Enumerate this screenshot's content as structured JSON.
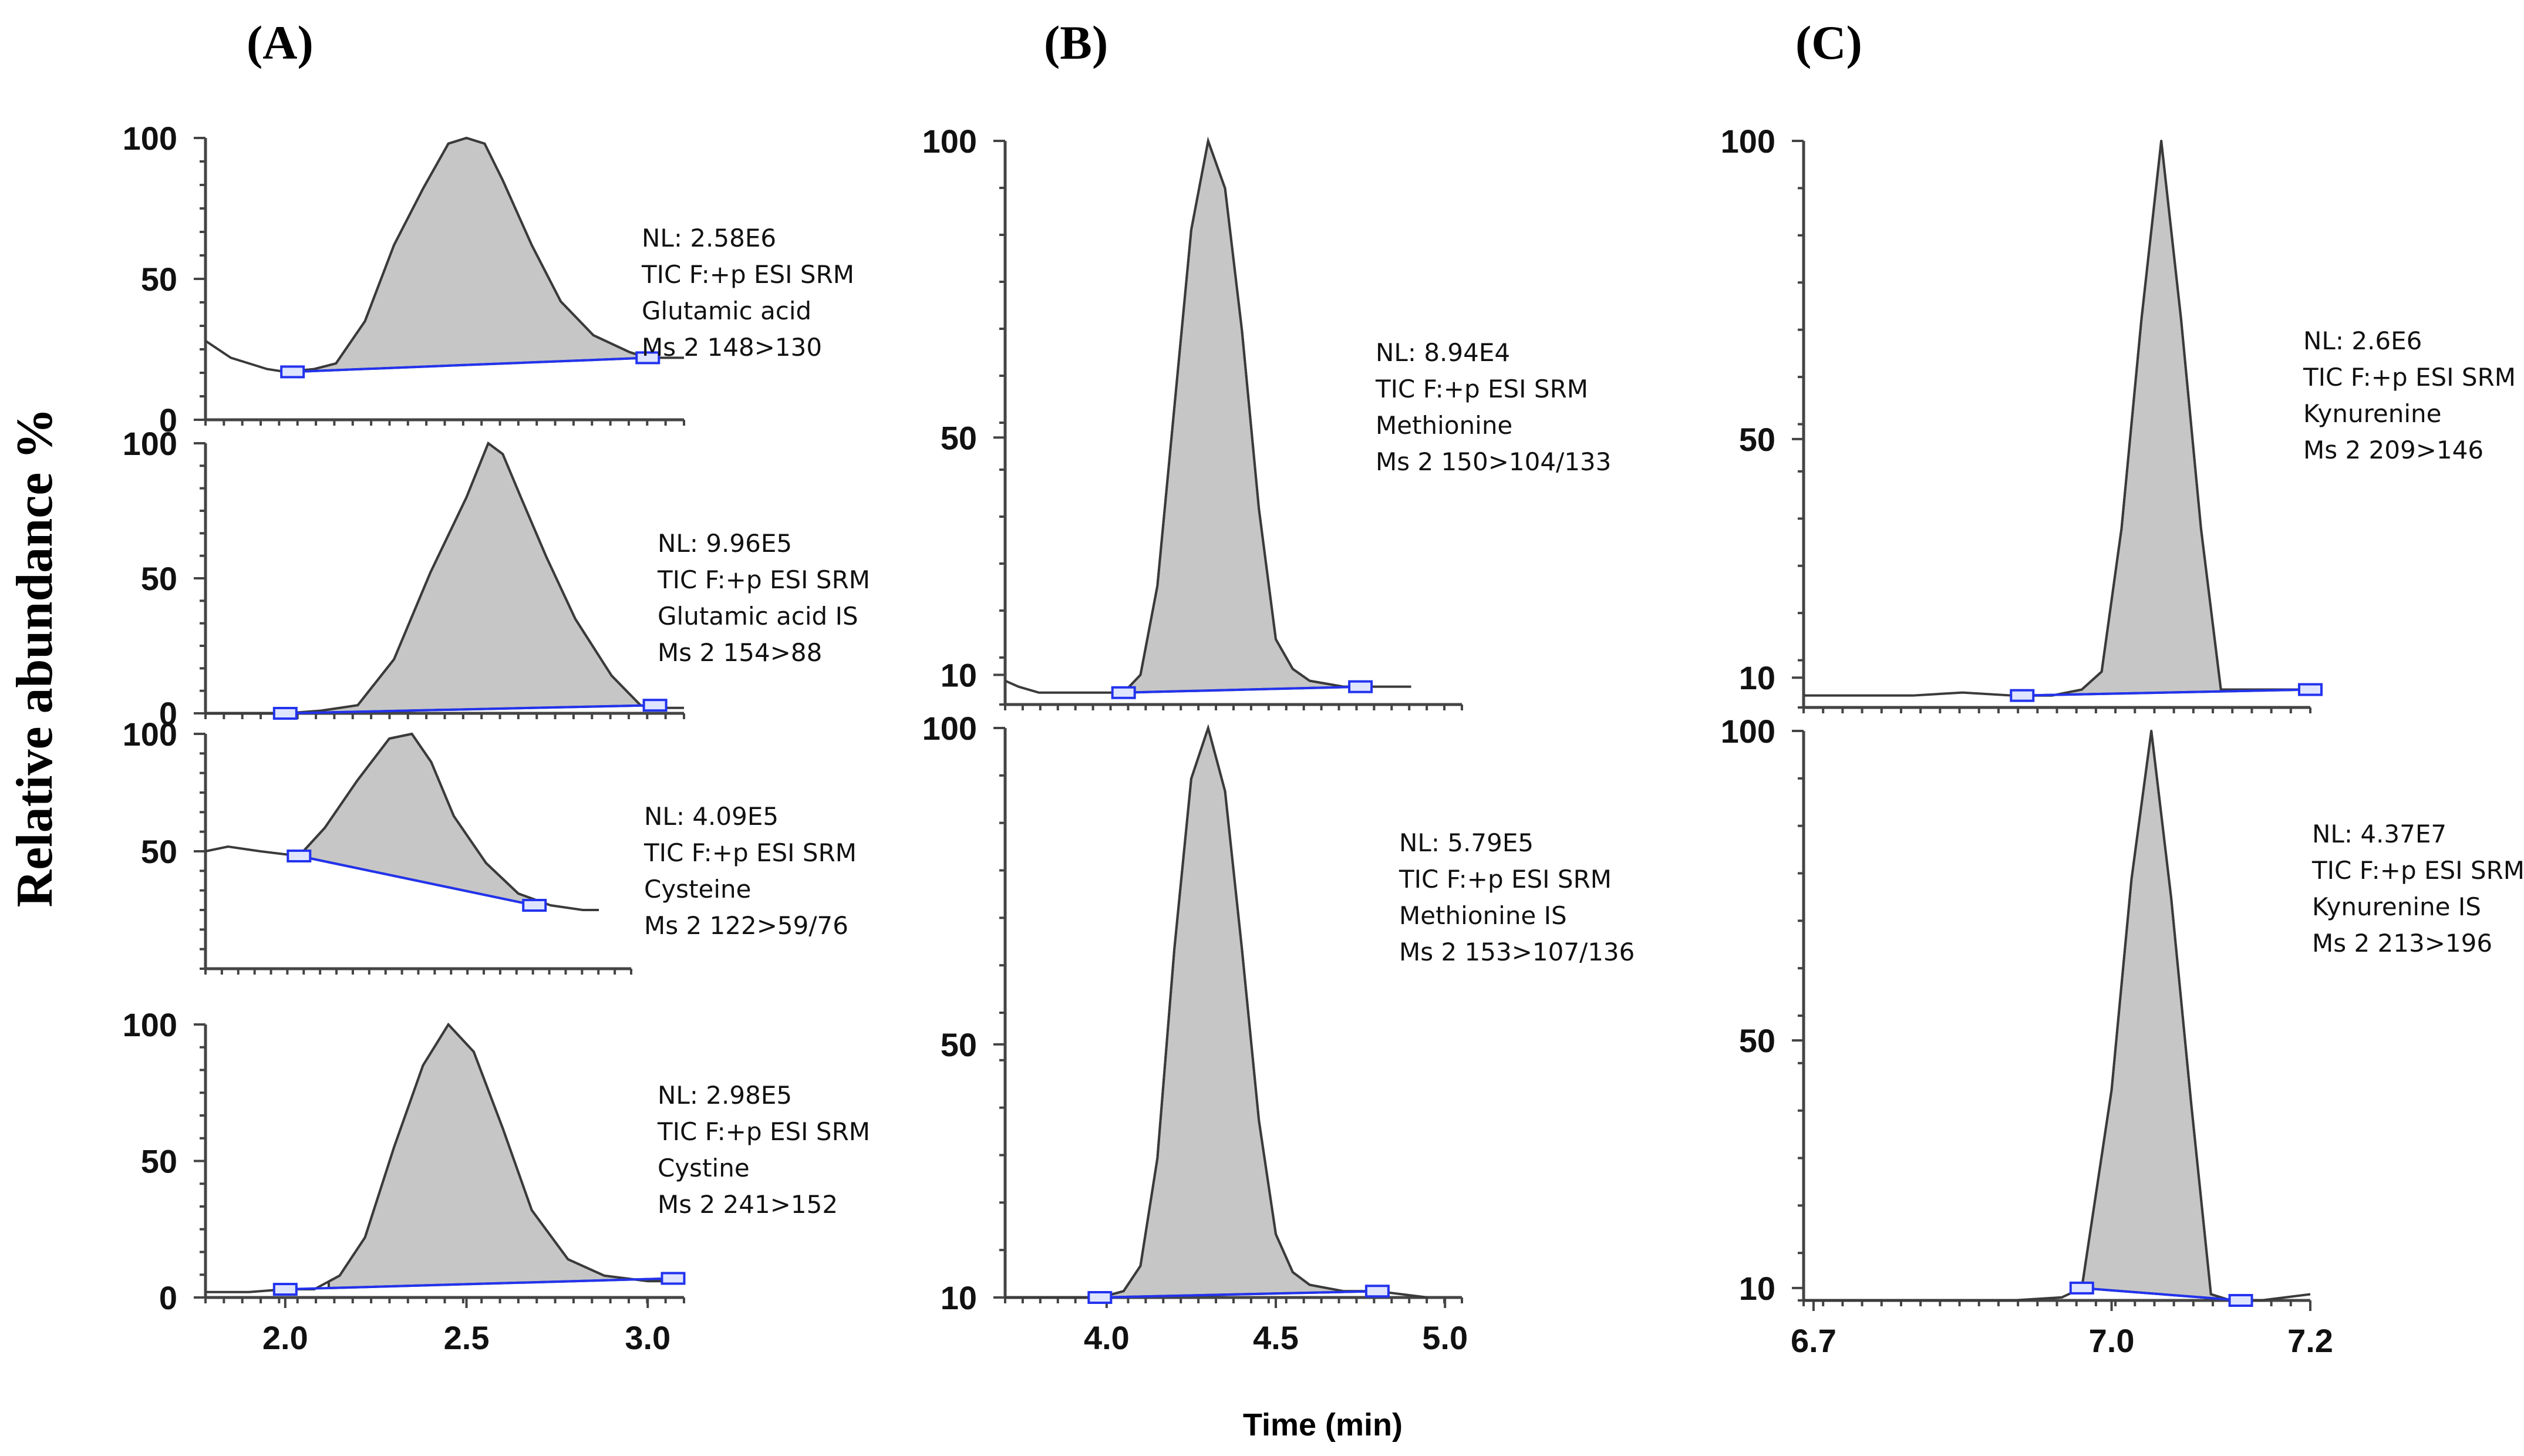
{
  "figure": {
    "panel_labels": [
      "(A)",
      "(B)",
      "(C)"
    ],
    "ylabel": "Relative abundance %",
    "xlabel": "Time (min)"
  },
  "chart_data": [
    {
      "type": "line",
      "column": "A",
      "title": "Glutamic acid",
      "xlim": [
        1.78,
        3.1
      ],
      "ylim": [
        0,
        100
      ],
      "yticks": [
        0,
        50,
        100
      ],
      "xticks": [],
      "x": [
        1.78,
        1.85,
        1.9,
        1.95,
        2.0,
        2.08,
        2.14,
        2.22,
        2.3,
        2.38,
        2.45,
        2.5,
        2.55,
        2.6,
        2.68,
        2.76,
        2.85,
        2.95,
        3.0,
        3.1
      ],
      "values": [
        28,
        22,
        20,
        18,
        17,
        18,
        20,
        35,
        62,
        82,
        98,
        100,
        98,
        85,
        62,
        42,
        30,
        24,
        22,
        22
      ],
      "peak_range": [
        2.02,
        3.0
      ],
      "baseline": [
        [
          2.02,
          17
        ],
        [
          3.0,
          22
        ]
      ],
      "annotation": {
        "nl": "NL:  2.58E6",
        "scan": "TIC F:+p ESI SRM",
        "compound": "Glutamic acid",
        "transition": "Ms 2 148>130"
      }
    },
    {
      "type": "line",
      "column": "A",
      "title": "Glutamic acid IS",
      "xlim": [
        1.78,
        3.1
      ],
      "ylim": [
        0,
        100
      ],
      "yticks": [
        0,
        50,
        100
      ],
      "xticks": [],
      "x": [
        1.78,
        2.0,
        2.1,
        2.2,
        2.3,
        2.4,
        2.5,
        2.56,
        2.6,
        2.65,
        2.72,
        2.8,
        2.9,
        2.98,
        3.02,
        3.1
      ],
      "values": [
        0,
        0,
        1,
        3,
        20,
        52,
        80,
        100,
        96,
        80,
        58,
        35,
        14,
        3,
        2,
        2
      ],
      "peak_range": [
        2.1,
        3.02
      ],
      "baseline": [
        [
          2.0,
          0
        ],
        [
          3.02,
          3
        ]
      ],
      "annotation": {
        "nl": "NL:  9.96E5",
        "scan": "TIC F:+p ESI SRM",
        "compound": "Glutamic acid IS",
        "transition": "Ms 2 154>88"
      }
    },
    {
      "type": "line",
      "column": "A",
      "title": "Cysteine",
      "xlim": [
        1.78,
        3.1
      ],
      "ylim": [
        0,
        100
      ],
      "yticks": [
        50,
        100
      ],
      "xticks": [],
      "x": [
        1.78,
        1.85,
        1.95,
        2.07,
        2.15,
        2.25,
        2.35,
        2.42,
        2.48,
        2.55,
        2.65,
        2.75,
        2.85,
        2.95,
        3.0
      ],
      "values": [
        50,
        52,
        50,
        48,
        60,
        80,
        98,
        100,
        88,
        65,
        45,
        32,
        27,
        25,
        25
      ],
      "peak_range": [
        2.07,
        2.8
      ],
      "baseline": [
        [
          2.07,
          48
        ],
        [
          2.8,
          27
        ]
      ],
      "annotation": {
        "nl": "NL:  4.09E5",
        "scan": "TIC F:+p ESI SRM",
        "compound": "Cysteine",
        "transition": "Ms 2 122>59/76"
      }
    },
    {
      "type": "line",
      "column": "A",
      "title": "Cystine",
      "xlim": [
        1.78,
        3.1
      ],
      "ylim": [
        0,
        100
      ],
      "yticks": [
        0,
        50,
        100
      ],
      "xticks": [
        "2.0",
        "2.5",
        "3.0"
      ],
      "x": [
        1.78,
        1.9,
        2.0,
        2.08,
        2.15,
        2.22,
        2.3,
        2.38,
        2.45,
        2.52,
        2.6,
        2.68,
        2.78,
        2.88,
        3.0,
        3.1
      ],
      "values": [
        2,
        2,
        3,
        3,
        8,
        22,
        55,
        85,
        100,
        90,
        62,
        32,
        14,
        8,
        6,
        6
      ],
      "peak_range": [
        2.12,
        3.07
      ],
      "baseline": [
        [
          2.0,
          3
        ],
        [
          3.07,
          7
        ]
      ],
      "annotation": {
        "nl": "NL:  2.98E5",
        "scan": "TIC F:+p ESI SRM",
        "compound": "Cystine",
        "transition": "Ms 2 241>152"
      }
    },
    {
      "type": "line",
      "column": "B",
      "title": "Methionine",
      "xlim": [
        3.7,
        5.05
      ],
      "ylim": [
        5,
        100
      ],
      "yticks": [
        10,
        50,
        100
      ],
      "xticks": [],
      "x": [
        3.7,
        3.74,
        3.8,
        3.9,
        4.0,
        4.05,
        4.1,
        4.15,
        4.2,
        4.25,
        4.3,
        4.35,
        4.4,
        4.45,
        4.5,
        4.55,
        4.6,
        4.7,
        4.8,
        4.9
      ],
      "values": [
        9,
        8,
        7,
        7,
        7,
        7,
        10,
        25,
        55,
        85,
        100,
        92,
        68,
        38,
        16,
        11,
        9,
        8,
        8,
        8
      ],
      "peak_range": [
        4.05,
        4.75
      ],
      "baseline": [
        [
          4.05,
          7
        ],
        [
          4.75,
          8
        ]
      ],
      "annotation": {
        "nl": "NL:  8.94E4",
        "scan": "TIC F:+p ESI SRM",
        "compound": "Methionine",
        "transition": "Ms 2 150>104/133"
      }
    },
    {
      "type": "line",
      "column": "B",
      "title": "Methionine IS",
      "xlim": [
        3.7,
        5.05
      ],
      "ylim": [
        10,
        100
      ],
      "yticks": [
        10,
        50,
        100
      ],
      "xticks": [
        "4.0",
        "4.5",
        "5.0"
      ],
      "x": [
        3.7,
        3.8,
        3.9,
        3.98,
        4.05,
        4.1,
        4.15,
        4.2,
        4.25,
        4.3,
        4.35,
        4.4,
        4.45,
        4.5,
        4.55,
        4.6,
        4.7,
        4.8,
        4.95
      ],
      "values": [
        10,
        10,
        10,
        10,
        11,
        15,
        32,
        65,
        92,
        100,
        90,
        65,
        38,
        20,
        14,
        12,
        11,
        11,
        10
      ],
      "peak_range": [
        3.98,
        4.8
      ],
      "baseline": [
        [
          3.98,
          10
        ],
        [
          4.8,
          11
        ]
      ],
      "annotation": {
        "nl": "NL:  5.79E5",
        "scan": "TIC F:+p ESI SRM",
        "compound": "Methionine IS",
        "transition": "Ms 2 153>107/136"
      }
    },
    {
      "type": "line",
      "column": "C",
      "title": "Kynurenine",
      "xlim": [
        6.69,
        7.2
      ],
      "ylim": [
        5,
        100
      ],
      "yticks": [
        10,
        50,
        100
      ],
      "xticks": [],
      "x": [
        6.69,
        6.8,
        6.85,
        6.9,
        6.94,
        6.97,
        6.99,
        7.01,
        7.03,
        7.05,
        7.07,
        7.09,
        7.11,
        7.2
      ],
      "values": [
        7,
        7,
        7.5,
        7,
        7,
        8,
        11,
        35,
        70,
        100,
        70,
        35,
        8,
        8
      ],
      "peak_range": [
        6.91,
        7.2
      ],
      "baseline": [
        [
          6.91,
          7
        ],
        [
          7.2,
          8
        ]
      ],
      "annotation": {
        "nl": "NL:  2.6E6",
        "scan": "TIC F:+p ESI SRM",
        "compound": "Kynurenine",
        "transition": "Ms 2 209>146"
      }
    },
    {
      "type": "line",
      "column": "C",
      "title": "Kynurenine IS",
      "xlim": [
        6.69,
        7.2
      ],
      "ylim": [
        8,
        100
      ],
      "yticks": [
        10,
        50,
        100
      ],
      "xticks": [
        "6.7",
        "7.0",
        "7.2"
      ],
      "x": [
        6.69,
        6.8,
        6.9,
        6.95,
        6.97,
        7.0,
        7.02,
        7.04,
        7.06,
        7.08,
        7.1,
        7.12,
        7.15,
        7.2
      ],
      "values": [
        8,
        8,
        8,
        8.5,
        10,
        42,
        76,
        100,
        73,
        40,
        9,
        8,
        8,
        9
      ],
      "peak_range": [
        6.97,
        7.13
      ],
      "baseline": [
        [
          6.97,
          10
        ],
        [
          7.13,
          8
        ]
      ],
      "annotation": {
        "nl": "NL:  4.37E7",
        "scan": "TIC F:+p ESI SRM",
        "compound": "Kynurenine IS",
        "transition": "Ms 2 213>196"
      }
    }
  ]
}
